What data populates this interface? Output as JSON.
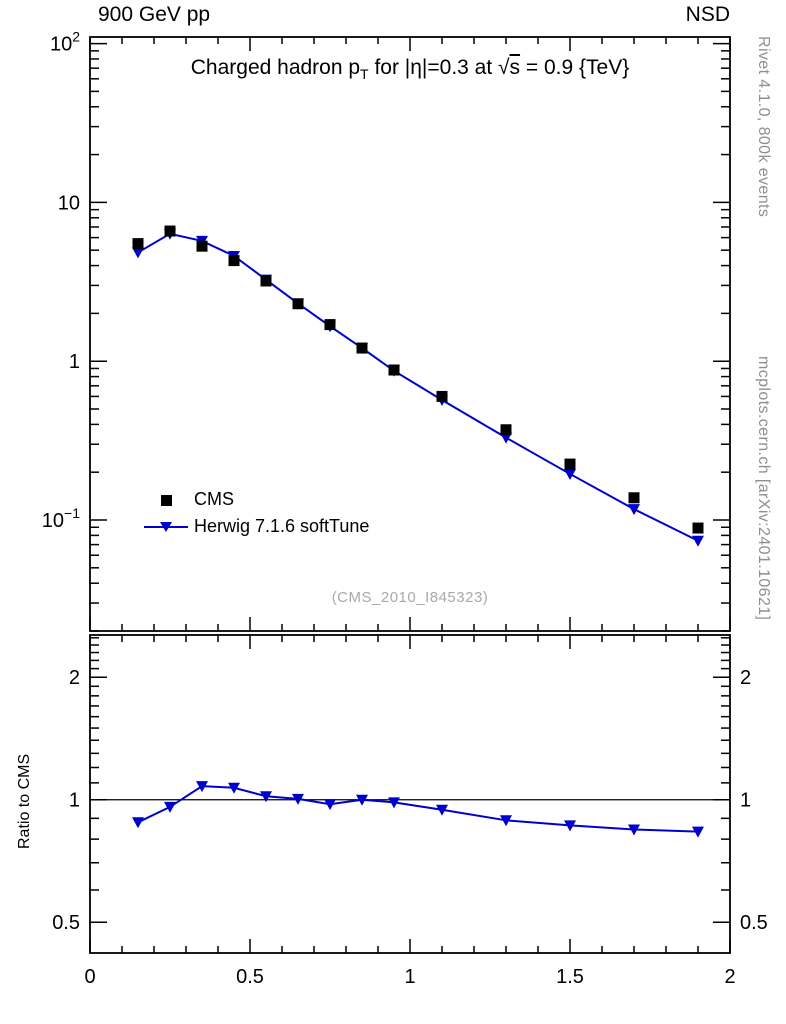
{
  "header": {
    "left": "900 GeV pp",
    "right": "NSD"
  },
  "title": {
    "pre": "Charged hadron p",
    "sub": "T",
    "mid": " for |η|=0.3 at ",
    "sqrt_sym": "√",
    "sqrt_arg": "s",
    "post": " = 0.9 {TeV}"
  },
  "legend": {
    "items": [
      {
        "label": "CMS",
        "marker": "square",
        "color": "#000000"
      },
      {
        "label": "Herwig 7.1.6 softTune",
        "marker": "triangle-down-line",
        "color": "#0000cc"
      }
    ]
  },
  "watermark": "(CMS_2010_I845323)",
  "side_notes": {
    "top": "Rivet 4.1.0,  800k events",
    "bottom": "mcplots.cern.ch [arXiv:2401.10621]"
  },
  "chart_data": {
    "type": "scatter",
    "title": "Charged hadron pT for |η|=0.3 at √s = 0.9 {TeV}",
    "xlabel": "",
    "ylabel": "",
    "xlim": [
      0,
      2
    ],
    "x_minor_step": 0.1,
    "xticks": [
      {
        "value": 0,
        "label": "0"
      },
      {
        "value": 0.5,
        "label": "0.5"
      },
      {
        "value": 1,
        "label": "1"
      },
      {
        "value": 1.5,
        "label": "1.5"
      },
      {
        "value": 2,
        "label": "2"
      }
    ],
    "ylog": true,
    "ylim": [
      0.02,
      110
    ],
    "yticks": [
      {
        "value": 100,
        "base": "10",
        "exp": "2"
      },
      {
        "value": 10,
        "base": "10",
        "exp": ""
      },
      {
        "value": 1,
        "base": "1",
        "exp": ""
      },
      {
        "value": 0.1,
        "base": "10",
        "exp": "−1"
      }
    ],
    "x": [
      0.15,
      0.25,
      0.35,
      0.45,
      0.55,
      0.65,
      0.75,
      0.85,
      0.95,
      1.1,
      1.3,
      1.5,
      1.7,
      1.9
    ],
    "series": [
      {
        "name": "CMS",
        "marker": "square",
        "color": "#000000",
        "line": false,
        "values": [
          5.5,
          6.6,
          5.3,
          4.3,
          3.2,
          2.3,
          1.7,
          1.21,
          0.88,
          0.6,
          0.37,
          0.225,
          0.138,
          0.089
        ]
      },
      {
        "name": "Herwig 7.1.6 softTune",
        "marker": "triangle-down",
        "color": "#0000cc",
        "line": true,
        "values": [
          4.84,
          6.34,
          5.72,
          4.6,
          3.26,
          2.31,
          1.66,
          1.21,
          0.87,
          0.57,
          0.33,
          0.195,
          0.117,
          0.074
        ]
      }
    ],
    "ratio": {
      "ylabel": "Ratio to CMS",
      "ylog": true,
      "ylim": [
        0.42,
        2.54
      ],
      "yticks": [
        {
          "value": 0.5,
          "label": "0.5"
        },
        {
          "value": 1,
          "label": "1"
        },
        {
          "value": 2,
          "label": "2"
        }
      ],
      "reference_line": 1,
      "values": [
        0.88,
        0.96,
        1.08,
        1.07,
        1.02,
        1.005,
        0.975,
        1.0,
        0.985,
        0.945,
        0.89,
        0.865,
        0.845,
        0.835
      ]
    }
  }
}
